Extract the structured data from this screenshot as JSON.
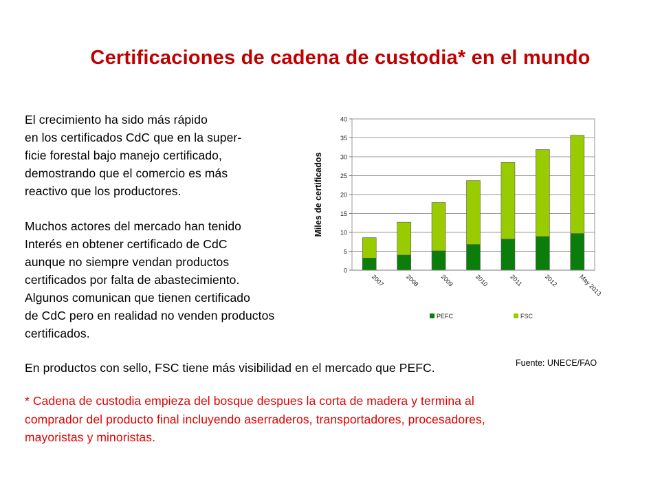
{
  "title": "Certificaciones de cadena de custodia* en el mundo",
  "paragraph1": [
    "El crecimiento ha sido más rápido",
    "en los certificados CdC que en la super-",
    "ficie forestal bajo manejo certificado,",
    "demostrando que el comercio es más",
    "reactivo que los productores."
  ],
  "paragraph2": [
    "Muchos actores del mercado han tenido",
    "Interés en obtener certificado de CdC",
    "aunque no siempre vendan productos",
    "certificados por falta de abastecimiento.",
    "Algunos comunican que tienen certificado",
    "de CdC pero en realidad no venden productos",
    "certificados."
  ],
  "paragraph3": "En productos con sello, FSC tiene más visibilidad  en el mercado que PEFC.",
  "footnote": [
    "* Cadena de custodia empieza del bosque despues la corta de madera y termina al",
    "comprador del producto final incluyendo aserraderos, transportadores, procesadores,",
    "mayoristas y minoristas."
  ],
  "source": "Fuente: UNECE/FAO",
  "colors": {
    "title": "#c00000",
    "footnote": "#e00000",
    "pefc": "#0a7d0a",
    "fsc": "#99cc00"
  },
  "chart_data": {
    "type": "bar",
    "stacked": true,
    "categories": [
      "2007",
      "2008",
      "2009",
      "2010",
      "2011",
      "2012",
      "May 2013"
    ],
    "series": [
      {
        "name": "PEFC",
        "values": [
          3.2,
          4.0,
          5.1,
          6.8,
          8.2,
          8.9,
          9.7
        ],
        "color": "#0a7d0a"
      },
      {
        "name": "FSC",
        "values": [
          5.4,
          8.7,
          12.8,
          16.9,
          20.3,
          23.0,
          26.0
        ],
        "color": "#99cc00"
      }
    ],
    "ylabel": "Miles de certificados",
    "ylim": [
      0,
      40
    ],
    "yticks": [
      "0",
      "5",
      "10",
      "15",
      "20",
      "25",
      "30",
      "35",
      "40"
    ],
    "grid": true,
    "legend": "bottom"
  }
}
